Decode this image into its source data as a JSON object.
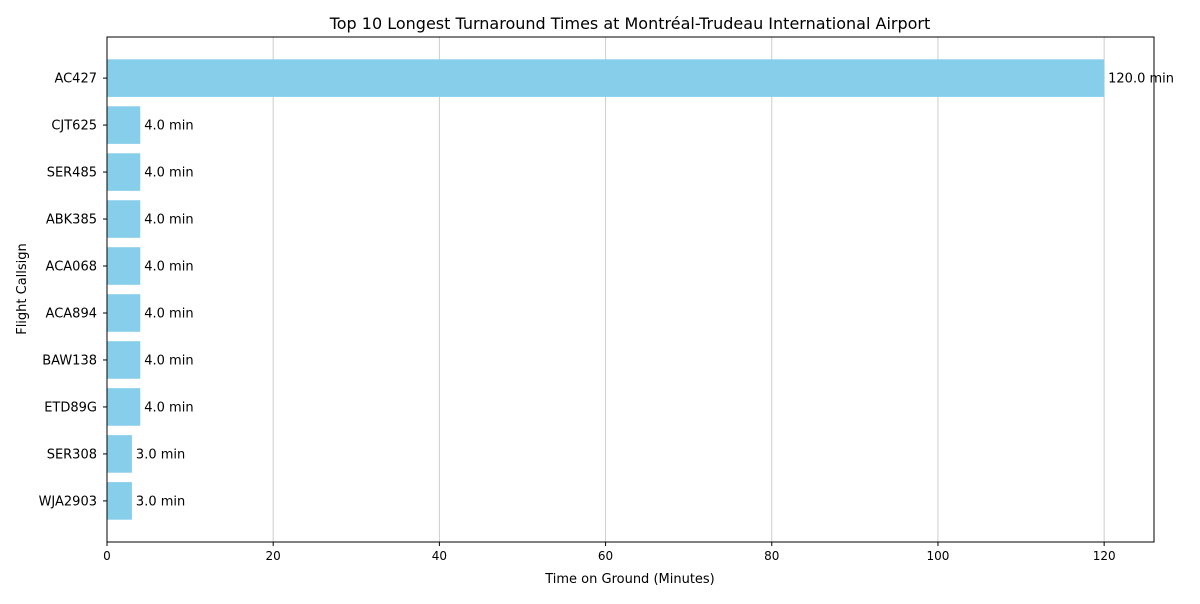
{
  "chart_data": {
    "type": "bar",
    "orientation": "horizontal",
    "title": "Top 10 Longest Turnaround Times at Montréal-Trudeau International Airport",
    "xlabel": "Time on Ground (Minutes)",
    "ylabel": "Flight Callsign",
    "categories": [
      "AC427",
      "CJT625",
      "SER485",
      "ABK385",
      "ACA068",
      "ACA894",
      "BAW138",
      "ETD89G",
      "SER308",
      "WJA2903"
    ],
    "values": [
      120.0,
      4.0,
      4.0,
      4.0,
      4.0,
      4.0,
      4.0,
      4.0,
      3.0,
      3.0
    ],
    "data_labels": [
      "120.0 min",
      "4.0 min",
      "4.0 min",
      "4.0 min",
      "4.0 min",
      "4.0 min",
      "4.0 min",
      "4.0 min",
      "3.0 min",
      "3.0 min"
    ],
    "xlim": [
      0,
      126
    ],
    "xticks": [
      0,
      20,
      40,
      60,
      80,
      100,
      120
    ],
    "grid": "vertical",
    "legend": "none",
    "bar_color": "#87ceeb",
    "grid_color": "#cccccc"
  }
}
